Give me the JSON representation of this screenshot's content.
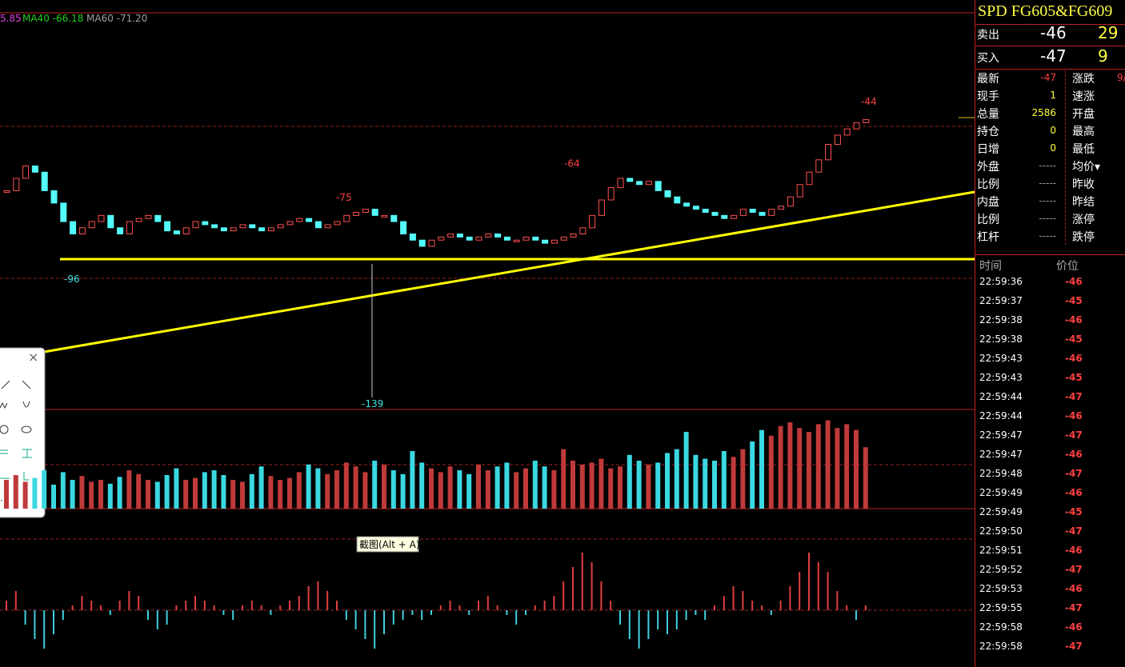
{
  "legend": [
    "5.85",
    "MA40 -66.18",
    "MA60 -71.20"
  ],
  "price_labels": {
    "high": -44,
    "peak1": -64,
    "peak2": -75,
    "low1": -96,
    "low": -139
  },
  "candles": {
    "closes": [
      -70,
      -66,
      -62,
      -64,
      -70,
      -74,
      -80,
      -84,
      -82,
      -80,
      -78,
      -82,
      -84,
      -80,
      -79,
      -78,
      -80,
      -83,
      -84,
      -82,
      -80,
      -81,
      -82,
      -83,
      -82,
      -81,
      -82,
      -83,
      -82,
      -81,
      -80,
      -79,
      -80,
      -82,
      -81,
      -80,
      -78,
      -77,
      -76,
      -78,
      -78,
      -80,
      -84,
      -86,
      -88,
      -86,
      -85,
      -84,
      -85,
      -86,
      -85,
      -84,
      -85,
      -86,
      -86,
      -85,
      -86,
      -87,
      -86,
      -85,
      -84,
      -82,
      -78,
      -73,
      -69,
      -66,
      -67,
      -68,
      -67,
      -70,
      -72,
      -74,
      -75,
      -76,
      -77,
      -78,
      -79,
      -78,
      -76,
      -77,
      -78,
      -76,
      -75,
      -72,
      -68,
      -64,
      -60,
      -55,
      -52,
      -50,
      -48,
      -47
    ]
  },
  "volume": [
    30,
    35,
    28,
    32,
    40,
    25,
    38,
    30,
    34,
    28,
    30,
    26,
    33,
    40,
    36,
    30,
    28,
    35,
    42,
    30,
    32,
    38,
    40,
    35,
    30,
    28,
    36,
    44,
    34,
    30,
    32,
    38,
    46,
    42,
    36,
    40,
    48,
    44,
    38,
    50,
    46,
    40,
    36,
    60,
    48,
    42,
    38,
    44,
    40,
    36,
    46,
    40,
    44,
    48,
    38,
    42,
    50,
    44,
    40,
    62,
    50,
    46,
    48,
    52,
    42,
    44,
    56,
    50,
    46,
    48,
    58,
    62,
    80,
    56,
    52,
    50,
    60,
    54,
    62,
    70,
    82,
    76,
    86,
    90,
    84,
    80,
    88,
    92,
    84,
    88,
    82,
    64
  ],
  "macd": [
    2,
    4,
    -3,
    -6,
    -8,
    -5,
    -2,
    1,
    3,
    2,
    1,
    -1,
    2,
    4,
    3,
    -2,
    -4,
    -3,
    1,
    2,
    3,
    2,
    1,
    -1,
    -2,
    1,
    2,
    1,
    -1,
    1,
    2,
    3,
    5,
    6,
    4,
    2,
    -2,
    -4,
    -6,
    -8,
    -5,
    -3,
    -2,
    -1,
    -2,
    -1,
    1,
    2,
    1,
    -1,
    2,
    3,
    1,
    -1,
    -3,
    -1,
    1,
    2,
    3,
    6,
    9,
    12,
    10,
    6,
    2,
    -3,
    -6,
    -8,
    -6,
    -4,
    -5,
    -4,
    -2,
    -1,
    -2,
    1,
    3,
    5,
    4,
    2,
    1,
    -1,
    2,
    5,
    8,
    12,
    10,
    8,
    4,
    1,
    -2,
    1
  ],
  "tooltip": "截图(Alt + A)",
  "quote": {
    "title": "SPD  FG605&FG609",
    "ask": {
      "label": "卖出",
      "price": -46,
      "size": 29
    },
    "bid": {
      "label": "买入",
      "price": -47,
      "size": 9
    },
    "left": [
      [
        "最新",
        -47
      ],
      [
        "现手",
        1
      ],
      [
        "总量",
        2586
      ],
      [
        "持仓",
        0
      ],
      [
        "日增",
        0
      ],
      [
        "外盘",
        "-----"
      ],
      [
        "比例",
        "-----"
      ],
      [
        "内盘",
        "-----"
      ],
      [
        "比例",
        "-----"
      ],
      [
        "杠杆",
        "-----"
      ]
    ],
    "right": [
      [
        "涨跌",
        "9/"
      ],
      [
        "速涨"
      ],
      [
        "开盘"
      ],
      [
        "最高"
      ],
      [
        "最低"
      ],
      [
        "均价▾"
      ],
      [
        "昨收"
      ],
      [
        "昨结"
      ],
      [
        "涨停"
      ],
      [
        "跌停"
      ]
    ]
  },
  "ticks": {
    "header": [
      "时间",
      "价位"
    ],
    "rows": [
      [
        "22:59:36",
        -46
      ],
      [
        "22:59:37",
        -45
      ],
      [
        "22:59:38",
        -46
      ],
      [
        "22:59:38",
        -45
      ],
      [
        "22:59:43",
        -46
      ],
      [
        "22:59:43",
        -45
      ],
      [
        "22:59:44",
        -47
      ],
      [
        "22:59:44",
        -46
      ],
      [
        "22:59:47",
        -47
      ],
      [
        "22:59:47",
        -46
      ],
      [
        "22:59:48",
        -47
      ],
      [
        "22:59:49",
        -46
      ],
      [
        "22:59:49",
        -45
      ],
      [
        "22:59:50",
        -47
      ],
      [
        "22:59:51",
        -46
      ],
      [
        "22:59:52",
        -47
      ],
      [
        "22:59:53",
        -46
      ],
      [
        "22:59:55",
        -47
      ],
      [
        "22:59:58",
        -46
      ],
      [
        "22:59:58",
        -47
      ]
    ]
  }
}
